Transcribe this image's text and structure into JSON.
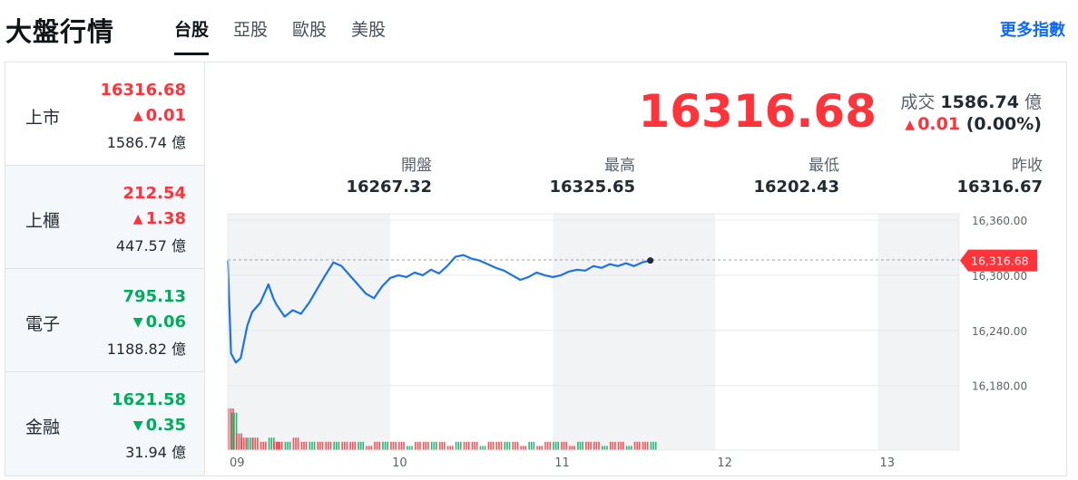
{
  "header": {
    "title": "大盤行情",
    "tabs": [
      "台股",
      "亞股",
      "歐股",
      "美股"
    ],
    "more_label": "更多指數"
  },
  "sidebar": {
    "items": [
      {
        "name": "上市",
        "price": "16316.68",
        "change": "0.01",
        "direction": "up",
        "volume": "1586.74 億"
      },
      {
        "name": "上櫃",
        "price": "212.54",
        "change": "1.38",
        "direction": "up",
        "volume": "447.57 億"
      },
      {
        "name": "電子",
        "price": "795.13",
        "change": "0.06",
        "direction": "down",
        "volume": "1188.82 億"
      },
      {
        "name": "金融",
        "price": "1621.58",
        "change": "0.35",
        "direction": "down",
        "volume": "31.94 億"
      }
    ]
  },
  "quote": {
    "price": "16316.68",
    "volume_label": "成交",
    "volume_value": "1586.74",
    "volume_unit": "億",
    "change": "0.01",
    "change_pct": "(0.00%)"
  },
  "stats": {
    "open_label": "開盤",
    "open": "16267.32",
    "high_label": "最高",
    "high": "16325.65",
    "low_label": "最低",
    "low": "16202.43",
    "prev_label": "昨收",
    "prev": "16316.67"
  },
  "colors": {
    "up": "#ff333a",
    "down": "#00ab5e",
    "line": "#1a73e8",
    "accent": "#0f69ff"
  },
  "chart_data": {
    "type": "line",
    "y_ticks": [
      "16,360.00",
      "16,300.00",
      "16,240.00",
      "16,180.00"
    ],
    "y_tick_values": [
      16360,
      16300,
      16240,
      16180
    ],
    "ylim": [
      16160,
      16360
    ],
    "x_ticks": [
      "09",
      "10",
      "11",
      "12",
      "13"
    ],
    "x_range_hours": [
      9,
      13.5
    ],
    "reference_line": 16316.67,
    "current_label": "16,316.68",
    "series": [
      {
        "x": [
          9.0,
          9.02,
          9.05,
          9.08,
          9.12,
          9.15,
          9.2,
          9.25,
          9.28,
          9.3,
          9.35,
          9.4,
          9.45,
          9.5,
          9.55,
          9.6,
          9.65,
          9.7,
          9.75,
          9.8,
          9.85,
          9.9,
          9.95,
          10.0,
          10.05,
          10.1,
          10.15,
          10.2,
          10.25,
          10.3,
          10.35,
          10.4,
          10.45,
          10.5,
          10.55,
          10.6,
          10.65,
          10.7,
          10.75,
          10.8,
          10.85,
          10.9,
          10.95,
          11.0,
          11.05,
          11.1,
          11.15,
          11.2,
          11.25,
          11.3,
          11.35,
          11.4,
          11.45,
          11.5,
          11.55,
          11.6
        ],
        "values": [
          16316,
          16215,
          16205,
          16210,
          16245,
          16260,
          16270,
          16290,
          16275,
          16268,
          16255,
          16262,
          16258,
          16270,
          16285,
          16300,
          16314,
          16310,
          16300,
          16290,
          16280,
          16275,
          16288,
          16297,
          16300,
          16298,
          16303,
          16300,
          16306,
          16302,
          16310,
          16320,
          16322,
          16318,
          16316,
          16312,
          16308,
          16305,
          16300,
          16295,
          16298,
          16303,
          16300,
          16298,
          16300,
          16304,
          16306,
          16305,
          16310,
          16308,
          16312,
          16310,
          16313,
          16310,
          16314,
          16316
        ]
      }
    ],
    "volume_bars": [
      10,
      9,
      4,
      3,
      3,
      3,
      2,
      3,
      2,
      2,
      2,
      3,
      2,
      2,
      2,
      2,
      2,
      2,
      2,
      2,
      1,
      2,
      2,
      2,
      2,
      1,
      2,
      2,
      2,
      2,
      1,
      2,
      2,
      2,
      1,
      2,
      2,
      2,
      2,
      1,
      2,
      1,
      2,
      2,
      2,
      1,
      2,
      2,
      2,
      1,
      2,
      2,
      1,
      2,
      2,
      2
    ]
  }
}
